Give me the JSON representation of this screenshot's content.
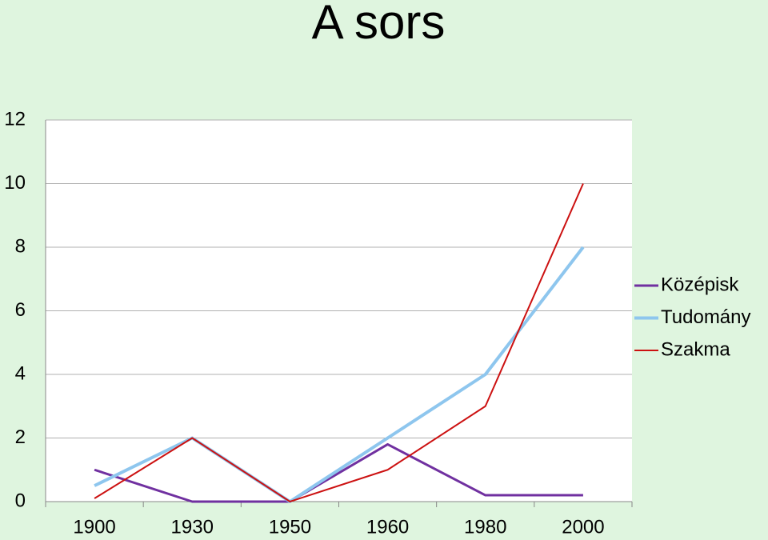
{
  "chart_data": {
    "type": "line",
    "title": "A sors",
    "categories": [
      "1900",
      "1930",
      "1950",
      "1960",
      "1980",
      "2000"
    ],
    "series": [
      {
        "name": "Középisk",
        "color": "#7030a0",
        "values": [
          1,
          0,
          0,
          1.8,
          0.2,
          0.2
        ]
      },
      {
        "name": "Tudomány",
        "color": "#8ec6ee",
        "values": [
          0.5,
          2,
          0,
          2,
          4,
          8
        ]
      },
      {
        "name": "Szakma",
        "color": "#cc1111",
        "values": [
          0.1,
          2,
          0,
          1,
          3,
          10
        ]
      }
    ],
    "ylim": [
      0,
      12
    ],
    "yticks": [
      0,
      2,
      4,
      6,
      8,
      10,
      12
    ],
    "grid": true,
    "legend": "right"
  }
}
